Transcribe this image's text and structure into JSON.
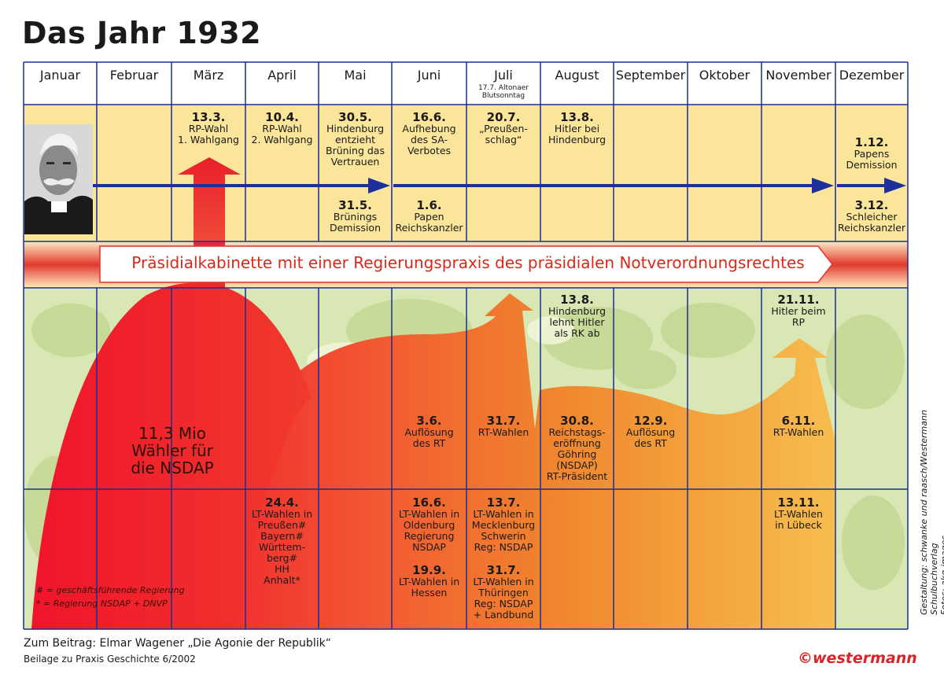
{
  "title": "Das Jahr 1932",
  "months": [
    "Januar",
    "Februar",
    "März",
    "April",
    "Mai",
    "Juni",
    "Juli",
    "August",
    "September",
    "Oktober",
    "November",
    "Dezember"
  ],
  "july_note": "17.7. Altonaer\nBlutsonntag",
  "banner": "Präsidialkabinette mit einer Regierungspraxis des präsidialen Notverordnungsrechtes",
  "top_events": [
    {
      "date": "13.3.",
      "text": "RP-Wahl\n1. Wahlgang"
    },
    {
      "date": "10.4.",
      "text": "RP-Wahl\n2. Wahlgang"
    },
    {
      "date": "30.5.",
      "text": "Hindenburg\nentzieht\nBrüning das\nVertrauen"
    },
    {
      "date": "16.6.",
      "text": "Aufhebung\ndes SA-\nVerbotes"
    },
    {
      "date": "20.7.",
      "text": "„Preußen-\nschlag“"
    },
    {
      "date": "13.8.",
      "text": "Hitler bei\nHindenburg"
    },
    {
      "date": "1.12.",
      "text": "Papens\nDemission"
    }
  ],
  "row2_events": [
    {
      "date": "31.5.",
      "text": "Brünings\nDemission"
    },
    {
      "date": "1.6.",
      "text": "Papen\nReichskanzler"
    },
    {
      "date": "3.12.",
      "text": "Schleicher\nReichskanzler"
    }
  ],
  "lower_events": [
    {
      "date": "13.8.",
      "text": "Hindenburg\nlehnt Hitler\nals RK ab"
    },
    {
      "date": "21.11.",
      "text": "Hitler beim\nRP"
    },
    {
      "date": "3.6.",
      "text": "Auflösung\ndes RT"
    },
    {
      "date": "31.7.",
      "text": "RT-Wahlen"
    },
    {
      "date": "30.8.",
      "text": "Reichstags-\neröffnung\nGöhring\n(NSDAP)\nRT-Präsident"
    },
    {
      "date": "12.9.",
      "text": "Auflösung\ndes RT"
    },
    {
      "date": "6.11.",
      "text": "RT-Wahlen"
    }
  ],
  "state_events": [
    {
      "date": "24.4.",
      "text": "LT-Wahlen in\nPreußen#\nBayern#\nWürttem-\nberg#\nHH\nAnhalt*"
    },
    {
      "date": "16.6.",
      "text": "LT-Wahlen in\nOldenburg\nRegierung\nNSDAP"
    },
    {
      "date": "19.9.",
      "text": "LT-Wahlen in\nHessen"
    },
    {
      "date": "13.7.",
      "text": "LT-Wahlen in\nMecklenburg\nSchwerin\nReg: NSDAP"
    },
    {
      "date": "31.7.",
      "text": "LT-Wahlen in\nThüringen\nReg: NSDAP\n+ Landbund"
    },
    {
      "date": "13.11.",
      "text": "LT-Wahlen\nin Lübeck"
    }
  ],
  "waehler": "11,3 Mio\nWähler für\ndie NSDAP",
  "legend": [
    "# = geschäftsführende Regierung",
    "* = Regierung NSDAP + DNVP"
  ],
  "footer": {
    "line1": "Zum Beitrag: Elmar Wagener „Die Agonie der Republik“",
    "line2": "Beilage zu Praxis Geschichte 6/2002"
  },
  "credit": "Gestaltung: schwanke und raasch/Westermann Schulbuchverlag\nFotos: akg-images",
  "brand": "©westermann",
  "colors": {
    "grid": "#1b2f8e",
    "arrow": "#1d2f9a",
    "top_band": "#fbe59a",
    "header_band": "#ffffff",
    "banner_red": "#e2342a",
    "banner_text": "#d62a18",
    "photo_bg": "#d9e7b4",
    "nsdap_red": "#ef2a2e",
    "orange": "#f07a30",
    "yellow_orange": "#f6b54a"
  }
}
